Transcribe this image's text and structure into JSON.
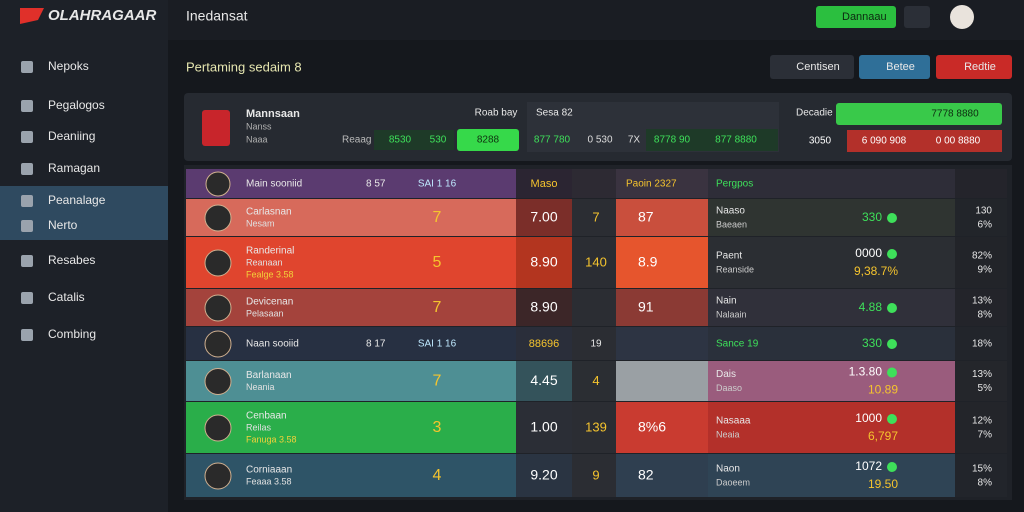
{
  "sidebar": {
    "logo": "OLAHRAGAAR",
    "items": [
      "Nepoks",
      "Pegalogos",
      "Deaniing",
      "Ramagan",
      "Peanalage",
      "Nerto",
      "Resabes",
      "Catalis",
      "Combing"
    ]
  },
  "header": {
    "title": "Inedansat",
    "button": "Dannaau"
  },
  "section": {
    "title": "Pertaming sedaim 8",
    "buttons": [
      "Centisen",
      "Betee",
      "Redtie"
    ]
  },
  "summary": {
    "team": "Mannsaan",
    "team_sub": "Nanss",
    "team_sub2": "Naaa",
    "label": "Reaag",
    "v1": "8530",
    "v2": "530",
    "v3": "8288",
    "mid_title": "Roab bay",
    "mid_label": "Sesa 82",
    "mid_values": [
      "877 780",
      "0 530",
      "7X",
      "8778 90",
      "877 8880"
    ],
    "right_label": "Decadie",
    "right_top": "7778 8880",
    "right_values": [
      "3050",
      "6 090 908",
      "0 00 8880"
    ]
  },
  "rows": [
    {
      "name": "Main sooniid",
      "a": "8 57",
      "b": "SAI 1 16",
      "c": "Maso",
      "e": "Paoin 2327",
      "f1": "Pergpos",
      "colors": [
        "#5b3b70",
        "#2b2532",
        "#2d2a33",
        "#3a3340",
        "#2e2d38",
        "#24242b"
      ]
    },
    {
      "name": "Carlasnan",
      "sub": "Nesam",
      "b": "7",
      "c": "7.00",
      "d": "7",
      "e": "87",
      "f1": "Naaso",
      "f2": "Baeaen",
      "g1": "330",
      "h1": "130",
      "h2": "6%",
      "colors": [
        "#d76a5b",
        "#7b2e29",
        "#2b2d33",
        "#c94f3d",
        "#2f3431",
        "#22252a"
      ]
    },
    {
      "name": "Randerinal",
      "sub": "Reanaan",
      "sub2": "Fealge 3.58",
      "b": "5",
      "c": "8.90",
      "d": "140",
      "e": "8.9",
      "f1": "Paent",
      "f2": "Reanside",
      "g1": "0000",
      "g2": "9,38.7%",
      "h1": "82%",
      "h2": "9%",
      "colors": [
        "#e0452e",
        "#b3351f",
        "#2b2d33",
        "#e6552d",
        "#2b2e33",
        "#222429"
      ]
    },
    {
      "name": "Devicenan",
      "sub": "Pelasaan",
      "b": "7",
      "c": "8.90",
      "e": "91",
      "f1": "Nain",
      "f2": "Nalaain",
      "g1": "4.88",
      "h1": "13%",
      "h2": "8%",
      "colors": [
        "#a4433c",
        "#3c2628",
        "#2b2d33",
        "#8b3a34",
        "#30303a",
        "#23242a"
      ]
    },
    {
      "name": "Naan sooiid",
      "a": "8 17",
      "b": "SAI 1 16",
      "c": "88696",
      "d": "19",
      "f1": "Sance 19",
      "g1": "330",
      "h1": "18%",
      "colors": [
        "#273042",
        "#2a2e3a",
        "#2b2d33",
        "#2d3443",
        "#2a303b",
        "#22252b"
      ]
    },
    {
      "name": "Barlanaan",
      "sub": "Neania",
      "b": "7",
      "c": "4.45",
      "d": "4",
      "f1": "Dais",
      "f2": "Daaso",
      "g1": "1.3.80",
      "g2": "10.89",
      "h1": "13%",
      "h2": "5%",
      "colors": [
        "#4e8f94",
        "#34535b",
        "#2b2e33",
        "#9aa0a4",
        "#9a5c7d",
        "#24262b"
      ]
    },
    {
      "name": "Cenbaan",
      "sub": "Reilas",
      "sub2": "Fanuga 3.58",
      "b": "3",
      "c": "1.00",
      "d": "139",
      "e": "8%6",
      "f1": "Nasaaa",
      "f2": "Neaia",
      "g1": "1000",
      "g2": "6,797",
      "h1": "12%",
      "h2": "7%",
      "colors": [
        "#2aae4a",
        "#2b2e36",
        "#2b2d33",
        "#c93b30",
        "#b3302a",
        "#23252a"
      ]
    },
    {
      "name": "Corniaaan",
      "sub": "Feaaa 3.58",
      "b": "4",
      "c": "9.20",
      "d": "9",
      "e": "82",
      "f1": "Naon",
      "f2": "Daoeem",
      "g1": "1072",
      "g2": "19.50",
      "h1": "15%",
      "h2": "8%",
      "colors": [
        "#2e5467",
        "#2a3442",
        "#2b2d33",
        "#2f3f50",
        "#2f4455",
        "#22252b"
      ]
    }
  ]
}
